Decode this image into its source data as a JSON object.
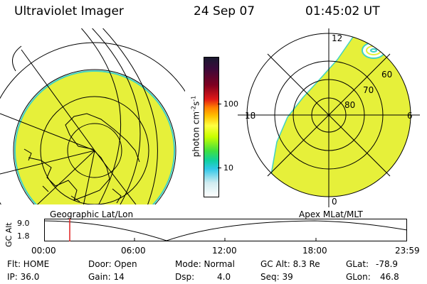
{
  "header": {
    "instrument": "Ultraviolet Imager",
    "date": "24 Sep 07",
    "time": "01:45:02 UT"
  },
  "colors": {
    "image_fill": "#e6f03a",
    "image_edge": "#3fd2c2",
    "marker": "#e02020",
    "red_patch": "#e83030"
  },
  "colorbar": {
    "unit_label": "photon cm",
    "unit_exp1": "-2",
    "unit_mid": "s",
    "unit_exp2": "-1",
    "ticks": [
      "100",
      "10"
    ],
    "stops": [
      "#1a1a30",
      "#3a0a3a",
      "#800020",
      "#e01818",
      "#ff8000",
      "#ffc000",
      "#ffff40",
      "#c8ff00",
      "#40e040",
      "#10d0a0",
      "#30c8e8",
      "#d0ecf0",
      "#ffffff"
    ]
  },
  "maps": {
    "left_label": "Geographic Lat/Lon",
    "right_label": "Apex MLat/MLT",
    "mlt_labels": {
      "top": "12",
      "left": "18",
      "right": "6",
      "bottom": "0"
    },
    "mlat_labels": [
      "60",
      "70",
      "80"
    ]
  },
  "timeline": {
    "ylabel": "GC Alt",
    "y_ticks": [
      "9.0",
      "1.8"
    ],
    "x_ticks": [
      "00:00",
      "06:00",
      "12:00",
      "18:00",
      "23:59"
    ],
    "marker_time": "01:45"
  },
  "status": {
    "flt": "Flt: HOME",
    "ip": "IP: 36.0",
    "door": "Door: Open",
    "gain": "Gain: 14",
    "mode": "Mode: Normal",
    "dsp_label": "Dsp:",
    "dsp_value": "4.0",
    "gc_alt": "GC Alt: 8.3 Re",
    "seq": "Seq: 39",
    "glat_label": "GLat:",
    "glat_value": "-78.9",
    "glon_label": "GLon:",
    "glon_value": "46.8"
  }
}
